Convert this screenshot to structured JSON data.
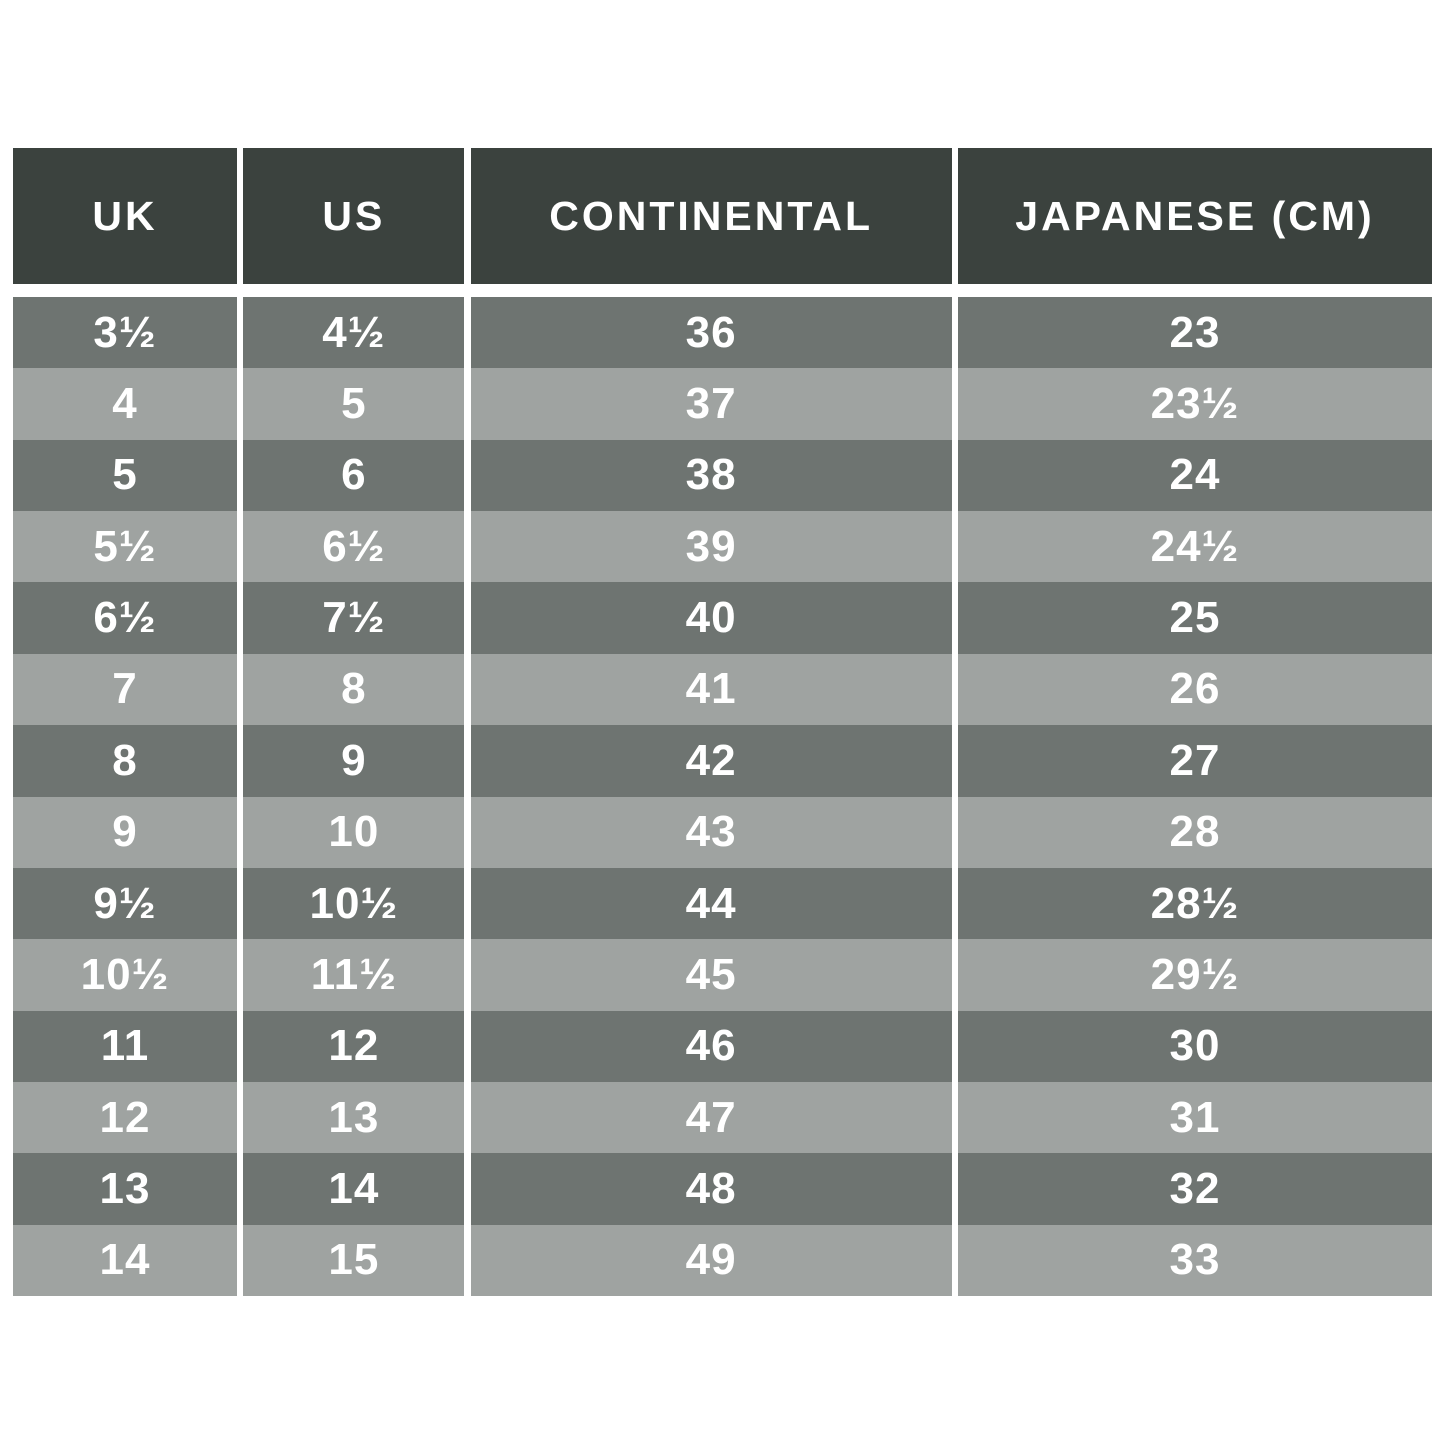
{
  "colors": {
    "header_bg": "#3B423E",
    "row_dark": "#6E7471",
    "row_light": "#9FA3A1",
    "text": "#FFFFFF",
    "page_bg": "#FFFFFF"
  },
  "table": {
    "headers": [
      "UK",
      "US",
      "CONTINENTAL",
      "JAPANESE (CM)"
    ],
    "rows": [
      [
        "3½",
        "4½",
        "36",
        "23"
      ],
      [
        "4",
        "5",
        "37",
        "23½"
      ],
      [
        "5",
        "6",
        "38",
        "24"
      ],
      [
        "5½",
        "6½",
        "39",
        "24½"
      ],
      [
        "6½",
        "7½",
        "40",
        "25"
      ],
      [
        "7",
        "8",
        "41",
        "26"
      ],
      [
        "8",
        "9",
        "42",
        "27"
      ],
      [
        "9",
        "10",
        "43",
        "28"
      ],
      [
        "9½",
        "10½",
        "44",
        "28½"
      ],
      [
        "10½",
        "11½",
        "45",
        "29½"
      ],
      [
        "11",
        "12",
        "46",
        "30"
      ],
      [
        "12",
        "13",
        "47",
        "31"
      ],
      [
        "13",
        "14",
        "48",
        "32"
      ],
      [
        "14",
        "15",
        "49",
        "33"
      ]
    ]
  },
  "chart_data": {
    "type": "table",
    "title": "",
    "columns": [
      "UK",
      "US",
      "CONTINENTAL",
      "JAPANESE (CM)"
    ],
    "rows": [
      [
        "3½",
        "4½",
        "36",
        "23"
      ],
      [
        "4",
        "5",
        "37",
        "23½"
      ],
      [
        "5",
        "6",
        "38",
        "24"
      ],
      [
        "5½",
        "6½",
        "39",
        "24½"
      ],
      [
        "6½",
        "7½",
        "40",
        "25"
      ],
      [
        "7",
        "8",
        "41",
        "26"
      ],
      [
        "8",
        "9",
        "42",
        "27"
      ],
      [
        "9",
        "10",
        "43",
        "28"
      ],
      [
        "9½",
        "10½",
        "44",
        "28½"
      ],
      [
        "10½",
        "11½",
        "45",
        "29½"
      ],
      [
        "11",
        "12",
        "46",
        "30"
      ],
      [
        "12",
        "13",
        "47",
        "31"
      ],
      [
        "13",
        "14",
        "48",
        "32"
      ],
      [
        "14",
        "15",
        "49",
        "33"
      ]
    ],
    "layout_hints": {
      "header_style": "dark charcoal band, white bold caps",
      "row_style": "alternating dark/light gray bands, white bold text, all cells centered",
      "separators": "white vertical gutters between the four columns, white gap between header and body"
    }
  }
}
